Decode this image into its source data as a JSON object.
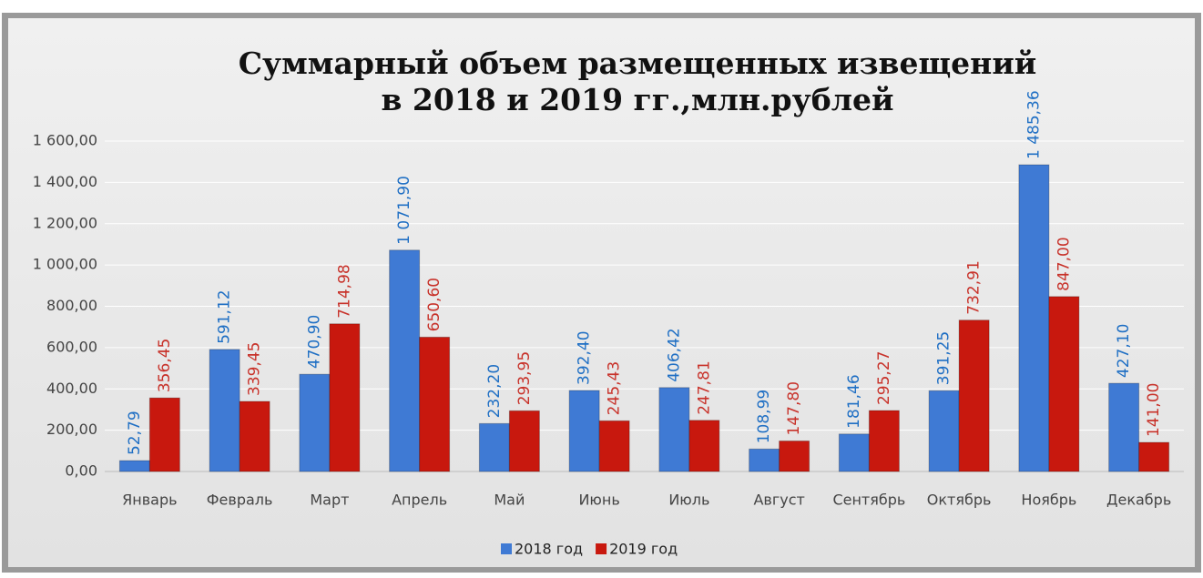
{
  "chart_data": {
    "type": "bar",
    "title": [
      "Суммарный объем размещенных извещений",
      "в 2018 и 2019 гг.,млн.рублей"
    ],
    "categories": [
      "Январь",
      "Февраль",
      "Март",
      "Апрель",
      "Май",
      "Июнь",
      "Июль",
      "Август",
      "Сентябрь",
      "Октябрь",
      "Ноябрь",
      "Декабрь"
    ],
    "series": [
      {
        "name": "2018 год",
        "color": "#3f7ad4",
        "label_color": "#1f6fc4",
        "values": [
          52.79,
          591.12,
          470.9,
          1071.9,
          232.2,
          392.4,
          406.42,
          108.99,
          181.46,
          391.25,
          1485.36,
          427.1
        ],
        "value_labels": [
          "52,79",
          "591,12",
          "470,90",
          "1 071,90",
          "232,20",
          "392,40",
          "406,42",
          "108,99",
          "181,46",
          "391,25",
          "1 485,36",
          "427,10"
        ]
      },
      {
        "name": "2019 год",
        "color": "#c8180e",
        "label_color": "#c8322a",
        "values": [
          356.45,
          339.45,
          714.98,
          650.6,
          293.95,
          245.43,
          247.81,
          147.8,
          295.27,
          732.91,
          847.0,
          141.0
        ],
        "value_labels": [
          "356,45",
          "339,45",
          "714,98",
          "650,60",
          "293,95",
          "245,43",
          "247,81",
          "147,80",
          "295,27",
          "732,91",
          "847,00",
          "141,00"
        ]
      }
    ],
    "ylim": [
      0,
      1600
    ],
    "yticks": [
      {
        "value": 0,
        "label": "0,00"
      },
      {
        "value": 200,
        "label": "200,00"
      },
      {
        "value": 400,
        "label": "400,00"
      },
      {
        "value": 600,
        "label": "600,00"
      },
      {
        "value": 800,
        "label": "800,00"
      },
      {
        "value": 1000,
        "label": "1 000,00"
      },
      {
        "value": 1200,
        "label": "1 200,00"
      },
      {
        "value": 1400,
        "label": "1 400,00"
      },
      {
        "value": 1600,
        "label": "1 600,00"
      }
    ],
    "grid": true,
    "legend": "bottom"
  }
}
